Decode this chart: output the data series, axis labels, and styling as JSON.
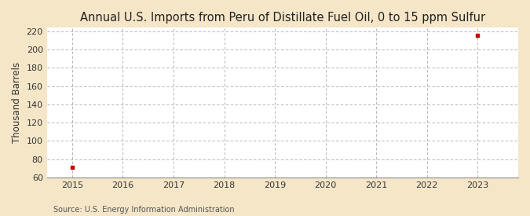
{
  "title": "Annual U.S. Imports from Peru of Distillate Fuel Oil, 0 to 15 ppm Sulfur",
  "ylabel": "Thousand Barrels",
  "source": "Source: U.S. Energy Information Administration",
  "figure_bg": "#f5e6c8",
  "plot_bg": "#ffffff",
  "data_points": [
    {
      "year": 2015,
      "value": 71
    },
    {
      "year": 2023,
      "value": 216
    }
  ],
  "xlim": [
    2014.5,
    2023.8
  ],
  "ylim": [
    60,
    224
  ],
  "yticks": [
    60,
    80,
    100,
    120,
    140,
    160,
    180,
    200,
    220
  ],
  "xticks": [
    2015,
    2016,
    2017,
    2018,
    2019,
    2020,
    2021,
    2022,
    2023
  ],
  "marker_color": "#cc0000",
  "grid_color": "#aaaaaa",
  "title_fontsize": 10.5,
  "label_fontsize": 8.5,
  "tick_fontsize": 8,
  "source_fontsize": 7
}
